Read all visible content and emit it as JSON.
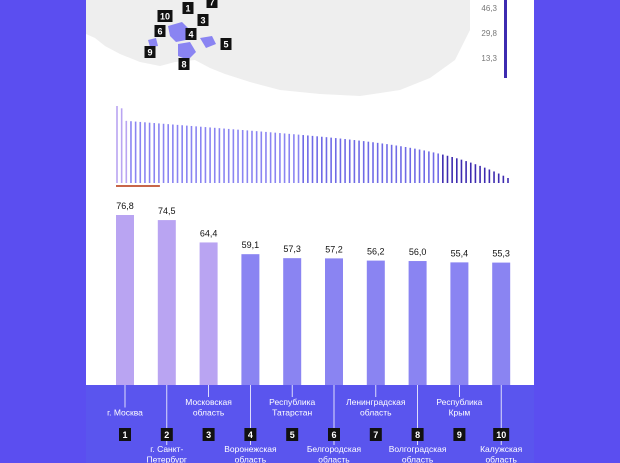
{
  "chart_data": {
    "type": "bar",
    "categories": [
      "г. Москва",
      "г. Санкт-Петербург",
      "Московская область",
      "Воронежская область",
      "Республика Татарстан",
      "Белгородская область",
      "Ленинградская область",
      "Волгоградская область",
      "Республика Крым",
      "Калужская область"
    ],
    "category_lines": [
      [
        "г. Москва"
      ],
      [
        "г. Санкт-",
        "Петербург"
      ],
      [
        "Московская",
        "область"
      ],
      [
        "Воронежская",
        "область"
      ],
      [
        "Республика",
        "Татарстан"
      ],
      [
        "Белгородская",
        "область"
      ],
      [
        "Ленинградская",
        "область"
      ],
      [
        "Волгоградская",
        "область"
      ],
      [
        "Республика",
        "Крым"
      ],
      [
        "Калужская",
        "область"
      ]
    ],
    "label_positions": [
      "up",
      "down",
      "up",
      "down",
      "up",
      "down",
      "up",
      "down",
      "up",
      "down"
    ],
    "ranks": [
      "1",
      "2",
      "3",
      "4",
      "5",
      "6",
      "7",
      "8",
      "9",
      "10"
    ],
    "values": [
      76.8,
      74.5,
      64.4,
      59.1,
      57.3,
      57.2,
      56.2,
      56.0,
      55.4,
      55.3
    ],
    "value_labels": [
      "76,8",
      "74,5",
      "64,4",
      "59,1",
      "57,3",
      "57,2",
      "56,2",
      "56,0",
      "55,4",
      "55,3"
    ],
    "bar_colors": [
      "#b9a4f2",
      "#b9a4f2",
      "#b9a4f2",
      "#8a84f2",
      "#8a84f2",
      "#8a84f2",
      "#8a84f2",
      "#8a84f2",
      "#8a84f2",
      "#8a84f2"
    ],
    "ylim": [
      0,
      80
    ],
    "grid": false,
    "title": "",
    "xlabel": "",
    "ylabel": ""
  },
  "mini_chart": {
    "type": "bar",
    "count": 85,
    "max": 76.8,
    "min": 5.0,
    "highlight_first": 10,
    "highlight_color": "#c0502f"
  },
  "legend_scale": {
    "ticks": [
      "46,3",
      "29,8",
      "13,3"
    ],
    "color": "#3d2bb0"
  },
  "map": {
    "markers": [
      "1",
      "3",
      "4",
      "5",
      "6",
      "7",
      "8",
      "9",
      "10"
    ],
    "land_color": "#eeeeee",
    "highlight_color": "#8a84f2"
  },
  "colors": {
    "page_background": "#5b4ef0",
    "bottom_band": "#5a55ee",
    "rank_box": "#111111"
  }
}
